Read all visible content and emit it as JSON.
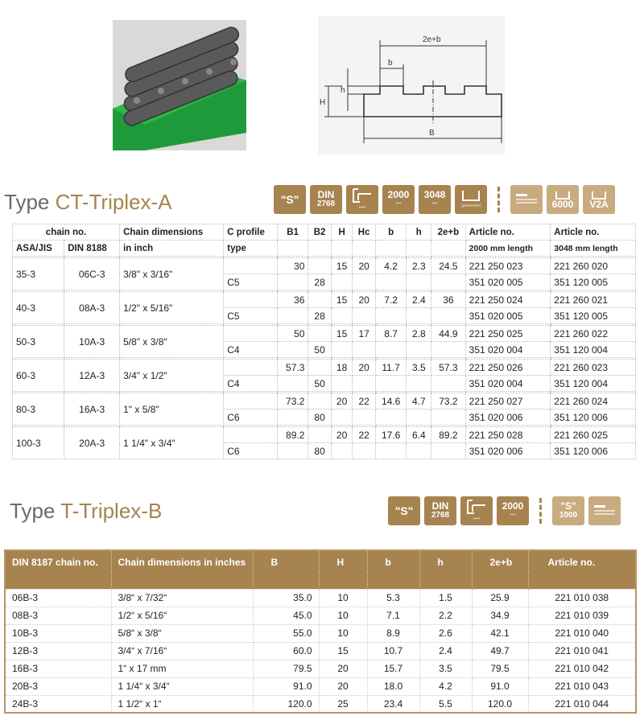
{
  "colors": {
    "accent": "#a7834f",
    "accent_light": "#c9ab80",
    "title_gray": "#6b6b6b"
  },
  "diagram": {
    "labels": [
      "2e+b",
      "b",
      "h",
      "H",
      "B"
    ]
  },
  "section_a": {
    "title_prefix": "Type",
    "title_name": "CT-Triplex-A",
    "icons": [
      {
        "label": "\"S\""
      },
      {
        "label": "DIN",
        "sub": "2768"
      },
      {
        "label": "profile-icon"
      },
      {
        "label": "2000"
      },
      {
        "label": "3048"
      },
      {
        "label": "galvanized"
      },
      {
        "label": "bars-icon",
        "light": true
      },
      {
        "label": "6000",
        "light": true
      },
      {
        "label": "V2A",
        "light": true
      }
    ],
    "headers": {
      "chain_no": "chain no.",
      "asa": "ASA/JIS",
      "din": "DIN 8188",
      "dims": "Chain dimensions",
      "dims2": "in inch",
      "cprofile": "C profile",
      "cprofile2": "type",
      "B1": "B1",
      "B2": "B2",
      "H": "H",
      "Hc": "Hc",
      "b": "b",
      "h": "h",
      "e2b": "2e+b",
      "art1": "Article no.",
      "art1_sub": "2000 mm length",
      "art2": "Article no.",
      "art2_sub": "3048 mm length"
    },
    "rows": [
      {
        "asa": "35-3",
        "din": "06C-3",
        "dims": "3/8\" x 3/16\"",
        "profile": "C5",
        "B1": "30",
        "B2": "28",
        "H": "15",
        "Hc": "20",
        "b": "4.2",
        "h": "2.3",
        "e2b": "24.5",
        "art1a": "221 250 023",
        "art1b": "351 020 005",
        "art2a": "221 260 020",
        "art2b": "351 120 005"
      },
      {
        "asa": "40-3",
        "din": "08A-3",
        "dims": "1/2\" x 5/16\"",
        "profile": "C5",
        "B1": "36",
        "B2": "28",
        "H": "15",
        "Hc": "20",
        "b": "7.2",
        "h": "2.4",
        "e2b": "36",
        "art1a": "221 250 024",
        "art1b": "351 020 005",
        "art2a": "221 260 021",
        "art2b": "351 120 005"
      },
      {
        "asa": "50-3",
        "din": "10A-3",
        "dims": "5/8\" x 3/8\"",
        "profile": "C4",
        "B1": "50",
        "B2": "50",
        "H": "15",
        "Hc": "17",
        "b": "8.7",
        "h": "2.8",
        "e2b": "44.9",
        "art1a": "221 250 025",
        "art1b": "351 020 004",
        "art2a": "221 260 022",
        "art2b": "351 120 004"
      },
      {
        "asa": "60-3",
        "din": "12A-3",
        "dims": "3/4\" x 1/2\"",
        "profile": "C4",
        "B1": "57.3",
        "B2": "50",
        "H": "18",
        "Hc": "20",
        "b": "11.7",
        "h": "3.5",
        "e2b": "57.3",
        "art1a": "221 250 026",
        "art1b": "351 020 004",
        "art2a": "221 260 023",
        "art2b": "351 120 004"
      },
      {
        "asa": "80-3",
        "din": "16A-3",
        "dims": "1\" x 5/8\"",
        "profile": "C6",
        "B1": "73.2",
        "B2": "80",
        "H": "20",
        "Hc": "22",
        "b": "14.6",
        "h": "4.7",
        "e2b": "73.2",
        "art1a": "221 250 027",
        "art1b": "351 020 006",
        "art2a": "221 260 024",
        "art2b": "351 120 006"
      },
      {
        "asa": "100-3",
        "din": "20A-3",
        "dims": "1 1/4\" x 3/4\"",
        "profile": "C6",
        "B1": "89.2",
        "B2": "80",
        "H": "20",
        "Hc": "22",
        "b": "17.6",
        "h": "6.4",
        "e2b": "89.2",
        "art1a": "221 250 028",
        "art1b": "351 020 006",
        "art2a": "221 260 025",
        "art2b": "351 120 006"
      }
    ]
  },
  "section_b": {
    "title_prefix": "Type",
    "title_name": "T-Triplex-B",
    "icons": [
      {
        "label": "\"S\""
      },
      {
        "label": "DIN",
        "sub": "2768"
      },
      {
        "label": "profile-icon"
      },
      {
        "label": "2000"
      },
      {
        "label": "\"S\"",
        "sub": "1000",
        "light": true
      },
      {
        "label": "bars-icon",
        "light": true
      }
    ],
    "headers": [
      "DIN 8187 chain no.",
      "Chain dimensions in inches",
      "B",
      "H",
      "b",
      "h",
      "2e+b",
      "Article no."
    ],
    "rows": [
      [
        "06B-3",
        "3/8“ x 7/32“",
        "35.0",
        "10",
        "5.3",
        "1.5",
        "25.9",
        "221 010 038"
      ],
      [
        "08B-3",
        "1/2“ x 5/16“",
        "45.0",
        "10",
        "7.1",
        "2.2",
        "34.9",
        "221 010 039"
      ],
      [
        "10B-3",
        "5/8“ x 3/8“",
        "55.0",
        "10",
        "8.9",
        "2.6",
        "42.1",
        "221 010 040"
      ],
      [
        "12B-3",
        "3/4“ x 7/16“",
        "60.0",
        "15",
        "10.7",
        "2.4",
        "49.7",
        "221 010 041"
      ],
      [
        "16B-3",
        "1“ x 17 mm",
        "79.5",
        "20",
        "15.7",
        "3.5",
        "79.5",
        "221 010 042"
      ],
      [
        "20B-3",
        "1 1/4“ x 3/4“",
        "91.0",
        "20",
        "18.0",
        "4.2",
        "91.0",
        "221 010 043"
      ],
      [
        "24B-3",
        "1 1/2“ x 1“",
        "120.0",
        "25",
        "23.4",
        "5.5",
        "120.0",
        "221 010 044"
      ]
    ]
  }
}
